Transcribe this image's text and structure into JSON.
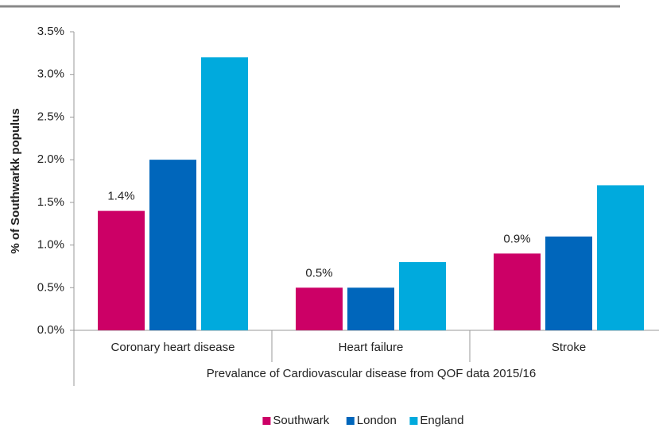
{
  "chart_data": {
    "type": "bar",
    "y_axis_label": "% of Southwarkk populus",
    "x_axis_label": "Prevalance of Cardiovascular disease from QOF data 2015/16",
    "categories": [
      "Coronary heart disease",
      "Heart failure",
      "Stroke"
    ],
    "series": [
      {
        "name": "Southwark",
        "color": "#cc0066",
        "values": [
          1.4,
          0.5,
          0.9
        ],
        "value_labels": [
          "1.4%",
          "0.5%",
          "0.9%"
        ]
      },
      {
        "name": "London",
        "color": "#0066bb",
        "values": [
          2.0,
          0.5,
          1.1
        ]
      },
      {
        "name": "England",
        "color": "#00aadd",
        "values": [
          3.2,
          0.8,
          1.7
        ]
      }
    ],
    "ylim": [
      0,
      3.5
    ],
    "yticks": [
      {
        "value": 0,
        "label": "0.0%"
      },
      {
        "value": 0.5,
        "label": "0.5%"
      },
      {
        "value": 1.0,
        "label": "1.0%"
      },
      {
        "value": 1.5,
        "label": "1.5%"
      },
      {
        "value": 2.0,
        "label": "2.0%"
      },
      {
        "value": 2.5,
        "label": "2.5%"
      },
      {
        "value": 3.0,
        "label": "3.0%"
      },
      {
        "value": 3.5,
        "label": "3.5%"
      }
    ],
    "legend": "bottom",
    "grid": false
  }
}
